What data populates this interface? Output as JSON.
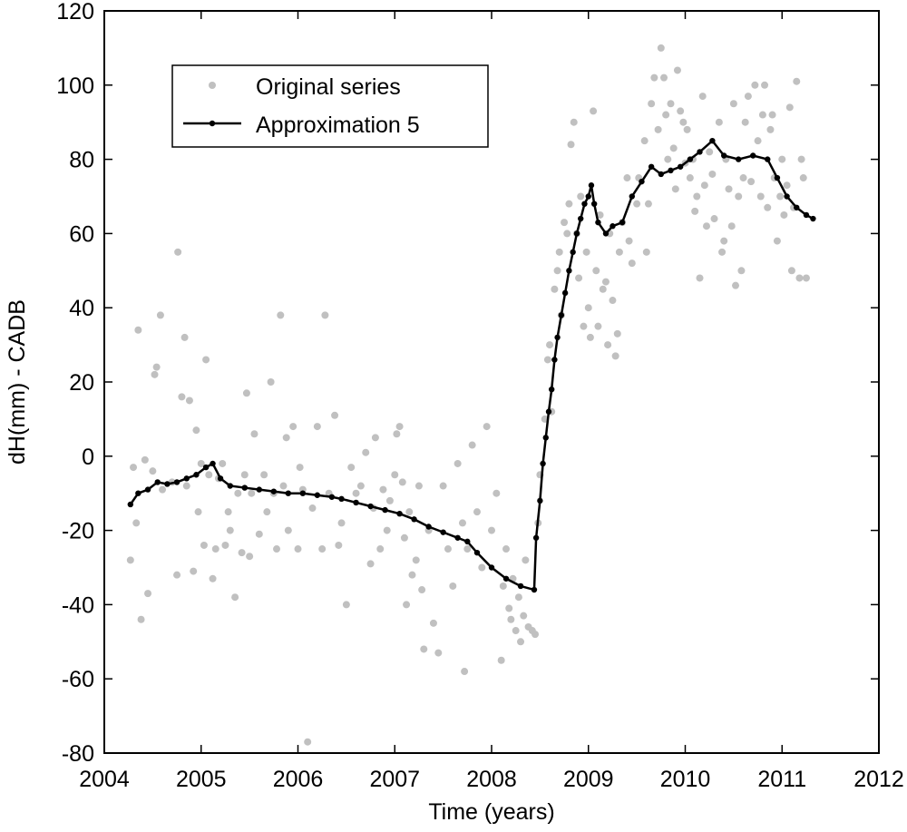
{
  "chart_data": {
    "type": "scatter",
    "xlabel": "Time (years)",
    "ylabel": "dH(mm) - CADB",
    "xlim": [
      2004,
      2012
    ],
    "ylim": [
      -80,
      120
    ],
    "xticks": [
      2004,
      2005,
      2006,
      2007,
      2008,
      2009,
      2010,
      2011,
      2012
    ],
    "yticks": [
      -80,
      -60,
      -40,
      -20,
      0,
      20,
      40,
      60,
      80,
      100,
      120
    ],
    "grid": false,
    "legend_position": "top-left",
    "legend": [
      {
        "label": "Original series",
        "marker": "gray-dot"
      },
      {
        "label": "Approximation 5",
        "marker": "black-line-dot"
      }
    ],
    "colors": {
      "original": "#c0c0c0",
      "approximation": "#000000"
    },
    "series": [
      {
        "name": "Original series",
        "style": "markers",
        "points": [
          [
            2004.27,
            -28
          ],
          [
            2004.3,
            -3
          ],
          [
            2004.33,
            -18
          ],
          [
            2004.35,
            34
          ],
          [
            2004.38,
            -44
          ],
          [
            2004.42,
            -1
          ],
          [
            2004.45,
            -37
          ],
          [
            2004.5,
            -4
          ],
          [
            2004.52,
            22
          ],
          [
            2004.54,
            24
          ],
          [
            2004.58,
            38
          ],
          [
            2004.6,
            -9
          ],
          [
            2004.7,
            -7
          ],
          [
            2004.75,
            -32
          ],
          [
            2004.76,
            55
          ],
          [
            2004.8,
            16
          ],
          [
            2004.83,
            32
          ],
          [
            2004.85,
            -8
          ],
          [
            2004.88,
            15
          ],
          [
            2004.92,
            -31
          ],
          [
            2004.95,
            7
          ],
          [
            2004.97,
            -15
          ],
          [
            2005.0,
            -2
          ],
          [
            2005.03,
            -24
          ],
          [
            2005.05,
            26
          ],
          [
            2005.08,
            -5
          ],
          [
            2005.12,
            -33
          ],
          [
            2005.15,
            -25
          ],
          [
            2005.18,
            -6
          ],
          [
            2005.22,
            -2
          ],
          [
            2005.25,
            -24
          ],
          [
            2005.28,
            -15
          ],
          [
            2005.3,
            -20
          ],
          [
            2005.35,
            -38
          ],
          [
            2005.38,
            -10
          ],
          [
            2005.42,
            -26
          ],
          [
            2005.45,
            -5
          ],
          [
            2005.47,
            17
          ],
          [
            2005.5,
            -27
          ],
          [
            2005.52,
            -10
          ],
          [
            2005.55,
            6
          ],
          [
            2005.6,
            -21
          ],
          [
            2005.65,
            -5
          ],
          [
            2005.68,
            -15
          ],
          [
            2005.72,
            20
          ],
          [
            2005.75,
            -10
          ],
          [
            2005.78,
            -25
          ],
          [
            2005.82,
            38
          ],
          [
            2005.85,
            -8
          ],
          [
            2005.88,
            5
          ],
          [
            2005.9,
            -20
          ],
          [
            2005.95,
            8
          ],
          [
            2006.0,
            -25
          ],
          [
            2006.02,
            -3
          ],
          [
            2006.05,
            -9
          ],
          [
            2006.1,
            -77
          ],
          [
            2006.15,
            -14
          ],
          [
            2006.2,
            8
          ],
          [
            2006.25,
            -25
          ],
          [
            2006.28,
            38
          ],
          [
            2006.32,
            -10
          ],
          [
            2006.38,
            11
          ],
          [
            2006.42,
            -24
          ],
          [
            2006.45,
            -18
          ],
          [
            2006.5,
            -40
          ],
          [
            2006.55,
            -3
          ],
          [
            2006.6,
            -10
          ],
          [
            2006.65,
            -8
          ],
          [
            2006.7,
            1
          ],
          [
            2006.75,
            -29
          ],
          [
            2006.78,
            -14
          ],
          [
            2006.8,
            5
          ],
          [
            2006.85,
            -25
          ],
          [
            2006.88,
            -9
          ],
          [
            2006.92,
            -20
          ],
          [
            2006.95,
            -12
          ],
          [
            2007.0,
            -5
          ],
          [
            2007.02,
            6
          ],
          [
            2007.05,
            8
          ],
          [
            2007.08,
            -7
          ],
          [
            2007.1,
            -22
          ],
          [
            2007.12,
            -40
          ],
          [
            2007.15,
            -15
          ],
          [
            2007.18,
            -32
          ],
          [
            2007.22,
            -28
          ],
          [
            2007.25,
            -8
          ],
          [
            2007.28,
            -36
          ],
          [
            2007.3,
            -52
          ],
          [
            2007.35,
            -20
          ],
          [
            2007.4,
            -45
          ],
          [
            2007.45,
            -53
          ],
          [
            2007.5,
            -8
          ],
          [
            2007.55,
            -25
          ],
          [
            2007.6,
            -35
          ],
          [
            2007.65,
            -2
          ],
          [
            2007.7,
            -18
          ],
          [
            2007.72,
            -58
          ],
          [
            2007.75,
            -25
          ],
          [
            2007.8,
            3
          ],
          [
            2007.85,
            -15
          ],
          [
            2007.9,
            -30
          ],
          [
            2007.95,
            8
          ],
          [
            2008.0,
            -20
          ],
          [
            2008.05,
            -10
          ],
          [
            2008.1,
            -55
          ],
          [
            2008.12,
            -35
          ],
          [
            2008.15,
            -25
          ],
          [
            2008.18,
            -41
          ],
          [
            2008.2,
            -44
          ],
          [
            2008.22,
            -33
          ],
          [
            2008.25,
            -47
          ],
          [
            2008.28,
            -38
          ],
          [
            2008.3,
            -50
          ],
          [
            2008.33,
            -43
          ],
          [
            2008.35,
            -28
          ],
          [
            2008.38,
            -46
          ],
          [
            2008.42,
            -47
          ],
          [
            2008.45,
            -48
          ],
          [
            2008.48,
            -18
          ],
          [
            2008.5,
            -5
          ],
          [
            2008.55,
            10
          ],
          [
            2008.58,
            26
          ],
          [
            2008.6,
            30
          ],
          [
            2008.62,
            12
          ],
          [
            2008.65,
            45
          ],
          [
            2008.68,
            50
          ],
          [
            2008.7,
            55
          ],
          [
            2008.72,
            38
          ],
          [
            2008.75,
            63
          ],
          [
            2008.78,
            60
          ],
          [
            2008.8,
            68
          ],
          [
            2008.82,
            84
          ],
          [
            2008.85,
            90
          ],
          [
            2008.88,
            60
          ],
          [
            2008.9,
            48
          ],
          [
            2008.92,
            70
          ],
          [
            2008.95,
            35
          ],
          [
            2008.98,
            55
          ],
          [
            2009.0,
            40
          ],
          [
            2009.02,
            32
          ],
          [
            2009.05,
            93
          ],
          [
            2009.08,
            50
          ],
          [
            2009.1,
            35
          ],
          [
            2009.12,
            65
          ],
          [
            2009.15,
            45
          ],
          [
            2009.18,
            47
          ],
          [
            2009.2,
            30
          ],
          [
            2009.22,
            60
          ],
          [
            2009.25,
            42
          ],
          [
            2009.28,
            27
          ],
          [
            2009.3,
            33
          ],
          [
            2009.32,
            55
          ],
          [
            2009.35,
            63
          ],
          [
            2009.4,
            75
          ],
          [
            2009.42,
            58
          ],
          [
            2009.45,
            52
          ],
          [
            2009.5,
            68
          ],
          [
            2009.52,
            75
          ],
          [
            2009.58,
            85
          ],
          [
            2009.6,
            55
          ],
          [
            2009.62,
            68
          ],
          [
            2009.65,
            95
          ],
          [
            2009.68,
            102
          ],
          [
            2009.72,
            88
          ],
          [
            2009.75,
            110
          ],
          [
            2009.78,
            102
          ],
          [
            2009.8,
            92
          ],
          [
            2009.82,
            80
          ],
          [
            2009.85,
            95
          ],
          [
            2009.88,
            83
          ],
          [
            2009.9,
            72
          ],
          [
            2009.92,
            104
          ],
          [
            2009.95,
            93
          ],
          [
            2009.98,
            90
          ],
          [
            2010.0,
            79
          ],
          [
            2010.02,
            88
          ],
          [
            2010.05,
            75
          ],
          [
            2010.08,
            80
          ],
          [
            2010.1,
            66
          ],
          [
            2010.12,
            70
          ],
          [
            2010.15,
            48
          ],
          [
            2010.18,
            97
          ],
          [
            2010.2,
            73
          ],
          [
            2010.22,
            62
          ],
          [
            2010.25,
            82
          ],
          [
            2010.28,
            76
          ],
          [
            2010.3,
            64
          ],
          [
            2010.35,
            90
          ],
          [
            2010.38,
            55
          ],
          [
            2010.4,
            58
          ],
          [
            2010.42,
            80
          ],
          [
            2010.45,
            72
          ],
          [
            2010.48,
            62
          ],
          [
            2010.5,
            95
          ],
          [
            2010.52,
            46
          ],
          [
            2010.55,
            70
          ],
          [
            2010.58,
            50
          ],
          [
            2010.6,
            75
          ],
          [
            2010.62,
            90
          ],
          [
            2010.65,
            97
          ],
          [
            2010.68,
            74
          ],
          [
            2010.72,
            100
          ],
          [
            2010.75,
            85
          ],
          [
            2010.78,
            70
          ],
          [
            2010.8,
            92
          ],
          [
            2010.82,
            100
          ],
          [
            2010.85,
            67
          ],
          [
            2010.88,
            88
          ],
          [
            2010.9,
            92
          ],
          [
            2010.92,
            75
          ],
          [
            2010.95,
            58
          ],
          [
            2010.98,
            70
          ],
          [
            2011.0,
            80
          ],
          [
            2011.02,
            65
          ],
          [
            2011.05,
            73
          ],
          [
            2011.08,
            94
          ],
          [
            2011.1,
            50
          ],
          [
            2011.12,
            67
          ],
          [
            2011.15,
            101
          ],
          [
            2011.18,
            48
          ],
          [
            2011.2,
            80
          ],
          [
            2011.22,
            75
          ],
          [
            2011.25,
            48
          ]
        ]
      },
      {
        "name": "Approximation 5",
        "style": "line-markers",
        "points": [
          [
            2004.27,
            -13
          ],
          [
            2004.35,
            -10
          ],
          [
            2004.45,
            -9
          ],
          [
            2004.55,
            -7
          ],
          [
            2004.65,
            -7.5
          ],
          [
            2004.75,
            -7
          ],
          [
            2004.85,
            -6
          ],
          [
            2004.95,
            -5
          ],
          [
            2005.05,
            -3
          ],
          [
            2005.12,
            -2
          ],
          [
            2005.2,
            -6
          ],
          [
            2005.3,
            -8
          ],
          [
            2005.45,
            -8.5
          ],
          [
            2005.6,
            -9
          ],
          [
            2005.75,
            -9.5
          ],
          [
            2005.9,
            -10
          ],
          [
            2006.05,
            -10
          ],
          [
            2006.2,
            -10.5
          ],
          [
            2006.35,
            -11
          ],
          [
            2006.45,
            -11.5
          ],
          [
            2006.6,
            -12.5
          ],
          [
            2006.75,
            -13.5
          ],
          [
            2006.9,
            -14.5
          ],
          [
            2007.05,
            -15.5
          ],
          [
            2007.2,
            -17
          ],
          [
            2007.35,
            -19
          ],
          [
            2007.5,
            -20.5
          ],
          [
            2007.65,
            -22
          ],
          [
            2007.75,
            -23
          ],
          [
            2007.85,
            -26
          ],
          [
            2008.0,
            -30
          ],
          [
            2008.15,
            -33
          ],
          [
            2008.3,
            -35
          ],
          [
            2008.44,
            -36
          ],
          [
            2008.46,
            -22
          ],
          [
            2008.5,
            -12
          ],
          [
            2008.53,
            -2
          ],
          [
            2008.56,
            5
          ],
          [
            2008.59,
            12
          ],
          [
            2008.62,
            18
          ],
          [
            2008.65,
            26
          ],
          [
            2008.68,
            32
          ],
          [
            2008.72,
            38
          ],
          [
            2008.76,
            44
          ],
          [
            2008.8,
            50
          ],
          [
            2008.84,
            55
          ],
          [
            2008.88,
            60
          ],
          [
            2008.92,
            64
          ],
          [
            2008.96,
            68
          ],
          [
            2009.0,
            70
          ],
          [
            2009.03,
            73
          ],
          [
            2009.06,
            68
          ],
          [
            2009.1,
            63
          ],
          [
            2009.18,
            60
          ],
          [
            2009.25,
            62
          ],
          [
            2009.35,
            63
          ],
          [
            2009.45,
            70
          ],
          [
            2009.55,
            74
          ],
          [
            2009.65,
            78
          ],
          [
            2009.75,
            76
          ],
          [
            2009.85,
            77
          ],
          [
            2009.95,
            78
          ],
          [
            2010.05,
            80
          ],
          [
            2010.15,
            82
          ],
          [
            2010.28,
            85
          ],
          [
            2010.4,
            81
          ],
          [
            2010.55,
            80
          ],
          [
            2010.7,
            81
          ],
          [
            2010.85,
            80
          ],
          [
            2010.95,
            75
          ],
          [
            2011.05,
            70
          ],
          [
            2011.15,
            67
          ],
          [
            2011.25,
            65
          ],
          [
            2011.32,
            64
          ]
        ]
      }
    ]
  }
}
